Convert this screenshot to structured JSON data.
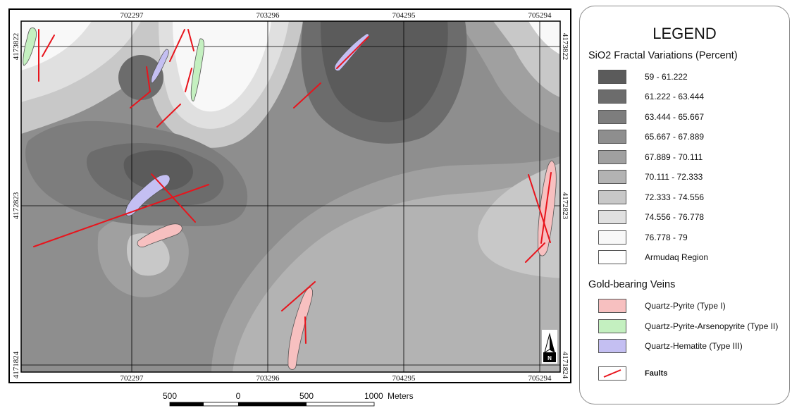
{
  "map": {
    "x_ticks": [
      "702297",
      "703296",
      "704295",
      "705294"
    ],
    "y_ticks": [
      "4173822",
      "4172823",
      "4171824"
    ],
    "north_label": "N",
    "scale_labels": [
      "500",
      "0",
      "500",
      "1000",
      "Meters"
    ]
  },
  "legend": {
    "title": "LEGEND",
    "sio2_title": "SiO2 Fractal Variations (Percent)",
    "classes": [
      {
        "label": "59 - 61.222",
        "color": "#5b5b5b"
      },
      {
        "label": "61.222 - 63.444",
        "color": "#6c6c6c"
      },
      {
        "label": "63.444 - 65.667",
        "color": "#7d7d7d"
      },
      {
        "label": "65.667 - 67.889",
        "color": "#8e8e8e"
      },
      {
        "label": "67.889 - 70.111",
        "color": "#a0a0a0"
      },
      {
        "label": "70.111 - 72.333",
        "color": "#b3b3b3"
      },
      {
        "label": "72.333 - 74.556",
        "color": "#c8c8c8"
      },
      {
        "label": "74.556 - 76.778",
        "color": "#e0e0e0"
      },
      {
        "label": "76.778 - 79",
        "color": "#f8f8f8"
      },
      {
        "label": "Armudaq Region",
        "color": "#ffffff"
      }
    ],
    "veins_title": "Gold-bearing Veins",
    "veins": [
      {
        "label": "Quartz-Pyrite (Type I)",
        "color": "#f7c0c0"
      },
      {
        "label": "Quartz-Pyrite-Arsenopyrite (Type II)",
        "color": "#c4f0c0"
      },
      {
        "label": "Quartz-Hematite (Type III)",
        "color": "#c4bff2"
      }
    ],
    "fault_label": "Faults",
    "fault_color": "#e8141c"
  }
}
